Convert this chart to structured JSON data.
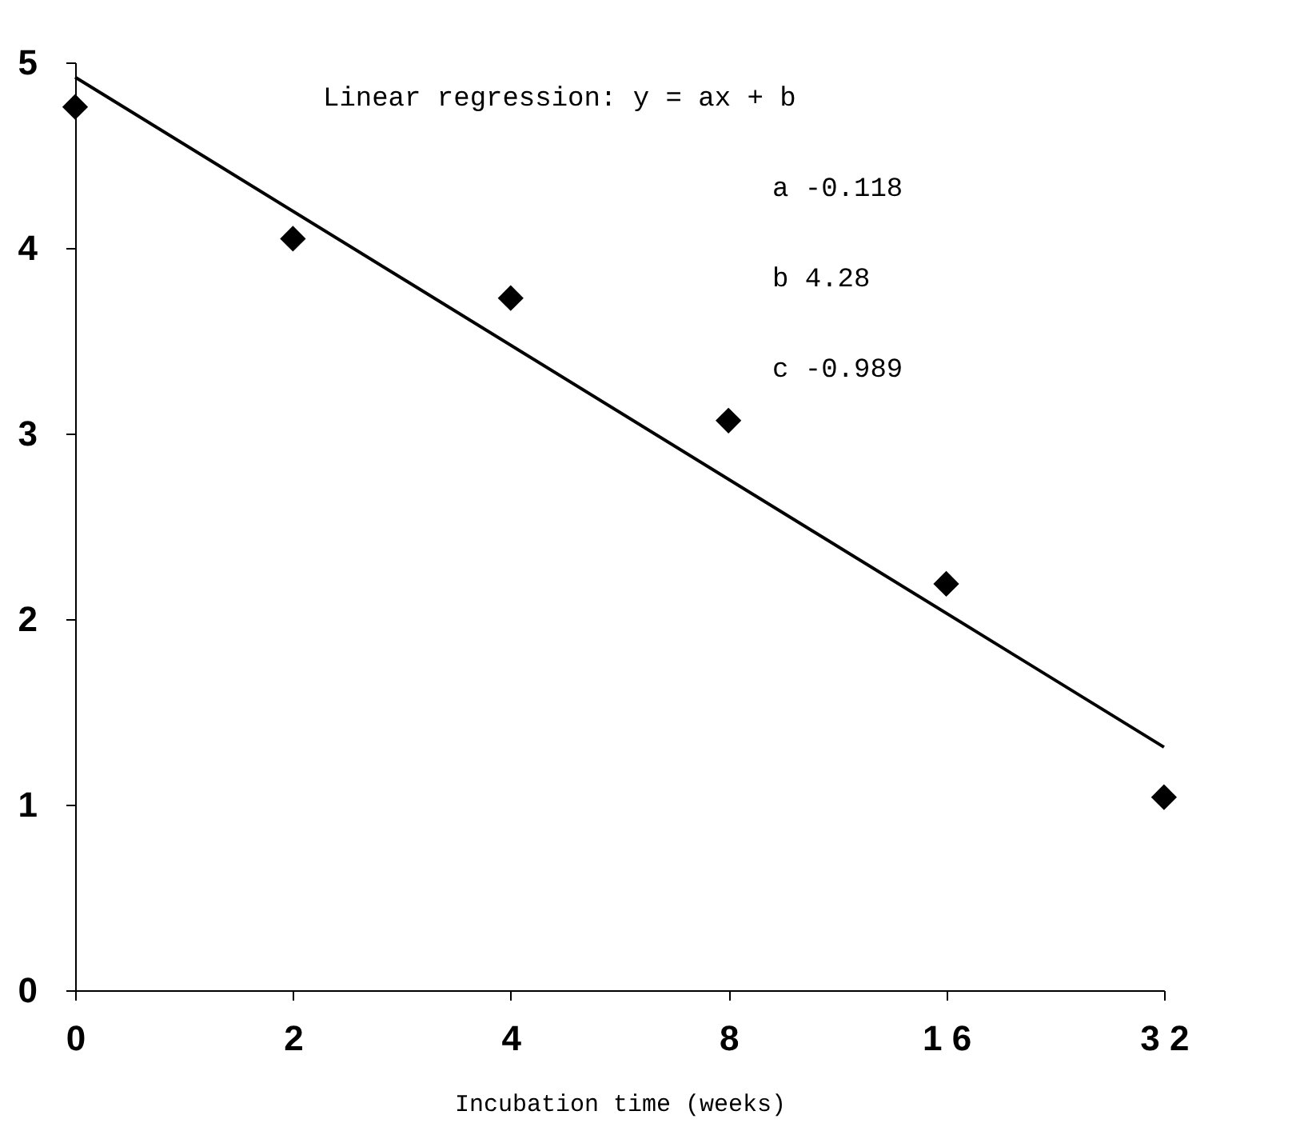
{
  "chart_data": {
    "type": "scatter",
    "xlabel": "Incubation time (weeks)",
    "categories": [
      "0",
      "2",
      "4",
      "8",
      "1 6",
      "3 2"
    ],
    "series": [
      {
        "color": "#000000",
        "marker": "diamond",
        "values": [
          4.76,
          4.05,
          3.73,
          3.07,
          2.19,
          1.04
        ]
      },
      {
        "type": "line",
        "color": "#000000",
        "marker": "none",
        "line_style": "solid",
        "x": [
          "0",
          "3 2"
        ],
        "values": [
          4.92,
          1.31
        ]
      }
    ],
    "ylim": [
      0,
      5
    ],
    "yticks": [
      0,
      1,
      2,
      3,
      4,
      5
    ],
    "grid": false,
    "annotations": [
      "Linear regression:  y = ax + b",
      "a  -0.118",
      "b   4.28",
      "c  -0.989"
    ]
  }
}
